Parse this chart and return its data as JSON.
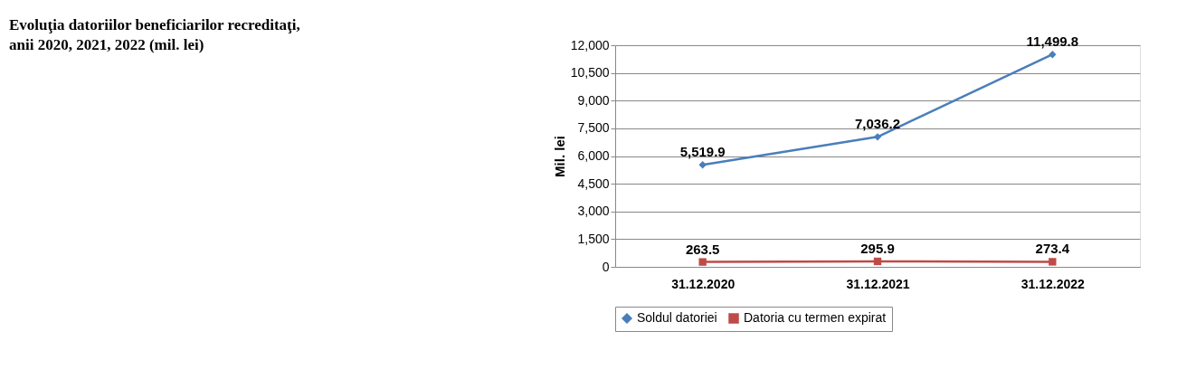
{
  "chart_data": {
    "type": "line",
    "title": "Evoluţia datoriilor beneficiarilor recreditaţi, anii 2020, 2021, 2022 (mil. lei)",
    "ylabel": "Mil. lei",
    "categories": [
      "31.12.2020",
      "31.12.2021",
      "31.12.2022"
    ],
    "series": [
      {
        "name": "Soldul datoriei",
        "color": "#4a7ebb",
        "marker": "diamond",
        "values": [
          5519.9,
          7036.2,
          11499.8
        ],
        "value_labels": [
          "5,519.9",
          "7,036.2",
          "11,499.8"
        ]
      },
      {
        "name": "Datoria cu termen expirat",
        "color": "#be4b48",
        "marker": "square",
        "values": [
          263.5,
          295.9,
          273.4
        ],
        "value_labels": [
          "263.5",
          "295.9",
          "273.4"
        ]
      }
    ],
    "ylim": [
      0,
      12000
    ],
    "yticks": [
      0,
      {
        "value": 1500,
        "label": "1,500"
      },
      {
        "value": 3000,
        "label": "3,000"
      },
      {
        "value": 4500,
        "label": "4,500"
      },
      {
        "value": 6000,
        "label": "6,000"
      },
      {
        "value": 7500,
        "label": "7,500"
      },
      {
        "value": 9000,
        "label": "9,000"
      },
      {
        "value": 10500,
        "label": "10,500"
      },
      {
        "value": 12000,
        "label": "12,000"
      }
    ],
    "grid": "y",
    "legend": "bottom"
  }
}
